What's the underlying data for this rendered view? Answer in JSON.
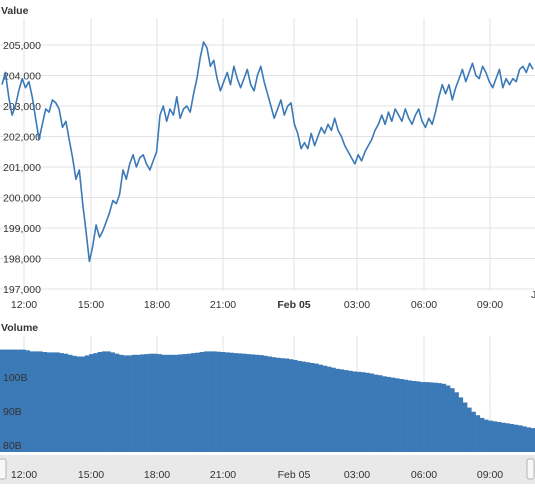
{
  "chart_data": [
    {
      "type": "line",
      "title": "Value",
      "ylim": [
        197000,
        205500
      ],
      "y_ticks": [
        "205,000",
        "204,000",
        "203,000",
        "202,000",
        "201,000",
        "200,000",
        "199,000",
        "198,000",
        "197,000"
      ],
      "x_ticks": [
        "12:00",
        "15:00",
        "18:00",
        "21:00",
        "Feb 05",
        "03:00",
        "06:00",
        "09:00"
      ],
      "grid": true,
      "series": [
        {
          "color": "#3b79b7",
          "points": [
            [
              0.0,
              203700
            ],
            [
              0.1,
              204100
            ],
            [
              0.2,
              203300
            ],
            [
              0.3,
              202700
            ],
            [
              0.4,
              203000
            ],
            [
              0.5,
              203500
            ],
            [
              0.6,
              203900
            ],
            [
              0.7,
              203600
            ],
            [
              0.8,
              203800
            ],
            [
              0.9,
              203300
            ],
            [
              1.0,
              202600
            ],
            [
              1.1,
              201900
            ],
            [
              1.2,
              202400
            ],
            [
              1.3,
              202900
            ],
            [
              1.4,
              202800
            ],
            [
              1.5,
              203200
            ],
            [
              1.6,
              203100
            ],
            [
              1.7,
              202900
            ],
            [
              1.8,
              202300
            ],
            [
              1.9,
              202500
            ],
            [
              2.0,
              201900
            ],
            [
              2.1,
              201300
            ],
            [
              2.2,
              200600
            ],
            [
              2.3,
              200900
            ],
            [
              2.4,
              199800
            ],
            [
              2.5,
              198900
            ],
            [
              2.6,
              197900
            ],
            [
              2.7,
              198400
            ],
            [
              2.8,
              199100
            ],
            [
              2.9,
              198700
            ],
            [
              3.0,
              198900
            ],
            [
              3.1,
              199200
            ],
            [
              3.2,
              199500
            ],
            [
              3.3,
              199900
            ],
            [
              3.4,
              199800
            ],
            [
              3.5,
              200100
            ],
            [
              3.6,
              200900
            ],
            [
              3.7,
              200600
            ],
            [
              3.8,
              201100
            ],
            [
              3.9,
              201400
            ],
            [
              4.0,
              201000
            ],
            [
              4.1,
              201300
            ],
            [
              4.2,
              201400
            ],
            [
              4.3,
              201100
            ],
            [
              4.4,
              200900
            ],
            [
              4.5,
              201200
            ],
            [
              4.6,
              201500
            ],
            [
              4.7,
              202700
            ],
            [
              4.8,
              203000
            ],
            [
              4.9,
              202500
            ],
            [
              5.0,
              202900
            ],
            [
              5.1,
              202700
            ],
            [
              5.2,
              203300
            ],
            [
              5.3,
              202600
            ],
            [
              5.4,
              202900
            ],
            [
              5.5,
              203000
            ],
            [
              5.6,
              202800
            ],
            [
              5.7,
              203400
            ],
            [
              5.8,
              203900
            ],
            [
              5.9,
              204600
            ],
            [
              6.0,
              205100
            ],
            [
              6.1,
              204900
            ],
            [
              6.2,
              204300
            ],
            [
              6.3,
              204500
            ],
            [
              6.4,
              203900
            ],
            [
              6.5,
              203500
            ],
            [
              6.6,
              203800
            ],
            [
              6.7,
              204100
            ],
            [
              6.8,
              203700
            ],
            [
              6.9,
              204300
            ],
            [
              7.0,
              203900
            ],
            [
              7.1,
              203600
            ],
            [
              7.2,
              203900
            ],
            [
              7.3,
              204200
            ],
            [
              7.4,
              203700
            ],
            [
              7.5,
              203500
            ],
            [
              7.6,
              204000
            ],
            [
              7.7,
              204300
            ],
            [
              7.8,
              203800
            ],
            [
              7.9,
              203400
            ],
            [
              8.0,
              203000
            ],
            [
              8.1,
              202600
            ],
            [
              8.2,
              202900
            ],
            [
              8.3,
              203200
            ],
            [
              8.4,
              202700
            ],
            [
              8.5,
              203000
            ],
            [
              8.6,
              203100
            ],
            [
              8.7,
              202400
            ],
            [
              8.8,
              202100
            ],
            [
              8.9,
              201600
            ],
            [
              9.0,
              201800
            ],
            [
              9.1,
              201600
            ],
            [
              9.2,
              202100
            ],
            [
              9.3,
              201700
            ],
            [
              9.4,
              202000
            ],
            [
              9.5,
              202300
            ],
            [
              9.6,
              202100
            ],
            [
              9.7,
              202400
            ],
            [
              9.8,
              202200
            ],
            [
              9.9,
              202600
            ],
            [
              10.0,
              202200
            ],
            [
              10.1,
              202000
            ],
            [
              10.2,
              201700
            ],
            [
              10.3,
              201500
            ],
            [
              10.4,
              201300
            ],
            [
              10.5,
              201100
            ],
            [
              10.6,
              201400
            ],
            [
              10.7,
              201200
            ],
            [
              10.8,
              201500
            ],
            [
              10.9,
              201700
            ],
            [
              11.0,
              201900
            ],
            [
              11.1,
              202200
            ],
            [
              11.2,
              202400
            ],
            [
              11.3,
              202700
            ],
            [
              11.4,
              202400
            ],
            [
              11.5,
              202800
            ],
            [
              11.6,
              202500
            ],
            [
              11.7,
              202900
            ],
            [
              11.8,
              202700
            ],
            [
              11.9,
              202500
            ],
            [
              12.0,
              202900
            ],
            [
              12.1,
              202600
            ],
            [
              12.2,
              202400
            ],
            [
              12.3,
              202700
            ],
            [
              12.4,
              202900
            ],
            [
              12.5,
              202500
            ],
            [
              12.6,
              202300
            ],
            [
              12.7,
              202600
            ],
            [
              12.8,
              202400
            ],
            [
              12.9,
              202800
            ],
            [
              13.0,
              203300
            ],
            [
              13.1,
              203700
            ],
            [
              13.2,
              203400
            ],
            [
              13.3,
              203700
            ],
            [
              13.4,
              203200
            ],
            [
              13.5,
              203600
            ],
            [
              13.6,
              203900
            ],
            [
              13.7,
              204200
            ],
            [
              13.8,
              203800
            ],
            [
              13.9,
              204100
            ],
            [
              14.0,
              204400
            ],
            [
              14.1,
              204000
            ],
            [
              14.2,
              203900
            ],
            [
              14.3,
              204300
            ],
            [
              14.4,
              204100
            ],
            [
              14.5,
              203800
            ],
            [
              14.6,
              203600
            ],
            [
              14.7,
              203900
            ],
            [
              14.8,
              204200
            ],
            [
              14.9,
              203600
            ],
            [
              15.0,
              203900
            ],
            [
              15.1,
              203700
            ],
            [
              15.2,
              203900
            ],
            [
              15.3,
              203800
            ],
            [
              15.4,
              204200
            ],
            [
              15.5,
              204300
            ],
            [
              15.6,
              204100
            ],
            [
              15.7,
              204400
            ],
            [
              15.8,
              204200
            ]
          ]
        }
      ]
    },
    {
      "type": "bar",
      "title": "Volume",
      "ylim": [
        78,
        112
      ],
      "y_ticks": [
        "100B",
        "90B",
        "80B"
      ],
      "x_ticks": [
        "12:00",
        "15:00",
        "18:00",
        "21:00",
        "Feb 05",
        "03:00",
        "06:00",
        "09:00"
      ],
      "grid": true,
      "series": [
        {
          "color": "#3b79b7",
          "unit": "B",
          "values": [
            108,
            108,
            108,
            108,
            108,
            108,
            107.8,
            107.5,
            107.5,
            107.5,
            107.3,
            107.2,
            107.2,
            107.2,
            107,
            106.8,
            106.5,
            106.2,
            106,
            106,
            106.3,
            106.7,
            107,
            107.3,
            107.5,
            107.5,
            107.2,
            106.8,
            106.5,
            106.3,
            106.3,
            106.5,
            106.5,
            106.6,
            106.7,
            106.8,
            106.8,
            106.7,
            106.5,
            106.5,
            106.5,
            106.5,
            106.6,
            106.7,
            106.8,
            107,
            107.1,
            107.3,
            107.5,
            107.5,
            107.5,
            107.4,
            107.3,
            107.2,
            107.1,
            107,
            106.9,
            106.8,
            106.7,
            106.6,
            106.5,
            106.4,
            106.2,
            106,
            105.8,
            105.6,
            105.5,
            105.4,
            105.2,
            105,
            104.7,
            104.5,
            104.3,
            104.1,
            103.9,
            103.6,
            103.3,
            103,
            102.7,
            102.4,
            102.2,
            102,
            101.8,
            101.6,
            101.5,
            101.4,
            101.2,
            101,
            100.7,
            100.5,
            100.2,
            100,
            99.8,
            99.6,
            99.4,
            99.2,
            99,
            98.8,
            98.7,
            98.5,
            98.5,
            98.4,
            98.3,
            98.2,
            98,
            97.5,
            96.7,
            95.5,
            94,
            92.5,
            91,
            89.8,
            88.8,
            88,
            87.5,
            87.2,
            87,
            86.8,
            86.6,
            86.4,
            86.2,
            86,
            85.8,
            85.5,
            85.2,
            85
          ]
        }
      ]
    }
  ]
}
